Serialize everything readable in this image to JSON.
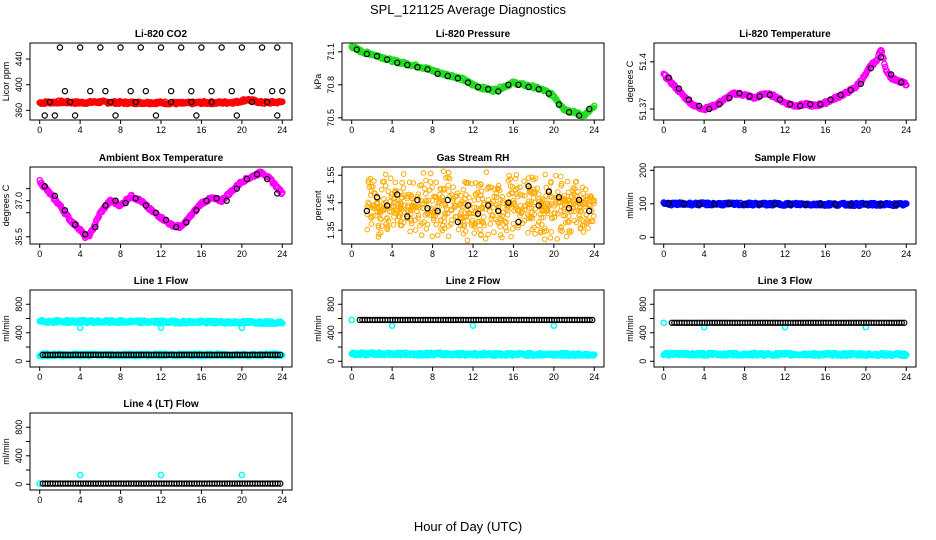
{
  "figure": {
    "title": "SPL_121125  Average Diagnostics",
    "xlabel": "Hour of Day (UTC)"
  },
  "chart_data": [
    {
      "type": "scatter",
      "title": "Li-820 CO2",
      "ylabel": "Licor ppm",
      "xlim": [
        0,
        24
      ],
      "ylim": [
        345,
        465
      ],
      "yticks": [
        360,
        400,
        440
      ],
      "xticks": [
        0,
        4,
        8,
        12,
        16,
        20,
        24
      ],
      "series": [
        {
          "role": "trace",
          "color": "#ff0000",
          "x": [
            0,
            2,
            4,
            6,
            8,
            10,
            12,
            14,
            16,
            18,
            19.5,
            20.5,
            22,
            24
          ],
          "y": [
            372,
            373,
            372,
            373,
            372,
            372,
            372,
            371,
            372,
            372,
            373,
            377,
            372,
            373
          ]
        },
        {
          "role": "points",
          "color": "#000000",
          "x": [
            2,
            2.5,
            4,
            5,
            6,
            6.5,
            8,
            9,
            10,
            10.5,
            12,
            13,
            14,
            15,
            16,
            17,
            18,
            19,
            20,
            21,
            22,
            23,
            23.5,
            24,
            0.5,
            1.5,
            3.5,
            7.5,
            11.5,
            15.5,
            19.5,
            23.5,
            1,
            3,
            7,
            9.5,
            13,
            15,
            17,
            21,
            22.5
          ],
          "y": [
            458,
            390,
            458,
            390,
            458,
            390,
            458,
            390,
            458,
            390,
            458,
            390,
            458,
            390,
            458,
            390,
            458,
            390,
            458,
            390,
            458,
            390,
            458,
            390,
            352,
            352,
            352,
            352,
            352,
            352,
            352,
            352,
            373,
            373,
            373,
            373,
            373,
            373,
            373,
            373,
            373
          ]
        }
      ]
    },
    {
      "type": "scatter",
      "title": "Li-820 Pressure",
      "ylabel": "kPa",
      "xlim": [
        0,
        24
      ],
      "ylim": [
        70.48,
        71.18
      ],
      "yticks": [
        70.5,
        70.8,
        71.1
      ],
      "xticks": [
        0,
        4,
        8,
        12,
        16,
        20,
        24
      ],
      "series": [
        {
          "role": "trace",
          "color": "#22dd22",
          "x": [
            0,
            1,
            2,
            3,
            4,
            5,
            6,
            7,
            8,
            9,
            10,
            11,
            12,
            13,
            14,
            15,
            16,
            17,
            18,
            19,
            20,
            21,
            22,
            23,
            24
          ],
          "y": [
            71.15,
            71.1,
            71.08,
            71.05,
            71.02,
            71.0,
            70.98,
            70.96,
            70.93,
            70.9,
            70.88,
            70.85,
            70.8,
            70.77,
            70.75,
            70.78,
            70.82,
            70.8,
            70.78,
            70.75,
            70.7,
            70.58,
            70.55,
            70.52,
            70.6
          ]
        },
        {
          "role": "points",
          "color": "#000000",
          "x": [
            0.5,
            1.5,
            2.5,
            3.5,
            4.5,
            5.5,
            6.5,
            7.5,
            8.5,
            9.5,
            10.5,
            11.5,
            12.5,
            13.5,
            14.5,
            15.5,
            16.5,
            17.5,
            18.5,
            19.5,
            20.5,
            21.5,
            22.5,
            23.5
          ],
          "y": [
            71.12,
            71.08,
            71.06,
            71.03,
            71.0,
            70.98,
            70.96,
            70.94,
            70.9,
            70.88,
            70.86,
            70.82,
            70.78,
            70.76,
            70.74,
            70.8,
            70.8,
            70.78,
            70.76,
            70.72,
            70.62,
            70.55,
            70.52,
            70.58
          ]
        }
      ]
    },
    {
      "type": "scatter",
      "title": "Li-820 Temperature",
      "ylabel": "degrees C",
      "xlim": [
        0,
        24
      ],
      "ylim": [
        51.363,
        51.412
      ],
      "yticks": [
        51.37,
        51.4
      ],
      "xticks": [
        0,
        4,
        8,
        12,
        16,
        20,
        24
      ],
      "series": [
        {
          "role": "trace",
          "color": "#ff00ff",
          "x": [
            0,
            1,
            2,
            3,
            4,
            5,
            6,
            7,
            8,
            9,
            10,
            11,
            12,
            13,
            14,
            15,
            16,
            17,
            18,
            19,
            20,
            20.5,
            21,
            21.5,
            22,
            22.5,
            23,
            24
          ],
          "y": [
            51.392,
            51.385,
            51.378,
            51.372,
            51.37,
            51.372,
            51.376,
            51.38,
            51.379,
            51.377,
            51.38,
            51.378,
            51.374,
            51.372,
            51.373,
            51.372,
            51.374,
            51.377,
            51.38,
            51.384,
            51.392,
            51.398,
            51.4,
            51.408,
            51.395,
            51.39,
            51.388,
            51.386
          ]
        },
        {
          "role": "points",
          "color": "#000000",
          "x": [
            0.5,
            1.5,
            2.5,
            3.5,
            4.5,
            5.5,
            6.5,
            7.5,
            8.5,
            9.5,
            10.5,
            11.5,
            12.5,
            13.5,
            14.5,
            15.5,
            16.5,
            17.5,
            18.5,
            19.5,
            20.5,
            21.5,
            22.5,
            23.5
          ],
          "y": [
            51.39,
            51.383,
            51.376,
            51.372,
            51.37,
            51.373,
            51.377,
            51.38,
            51.378,
            51.378,
            51.379,
            51.376,
            51.373,
            51.372,
            51.373,
            51.373,
            51.376,
            51.379,
            51.382,
            51.386,
            51.396,
            51.403,
            51.392,
            51.387
          ]
        }
      ]
    },
    {
      "type": "scatter",
      "title": "Ambient Box Temperature",
      "ylabel": "degrees C",
      "xlim": [
        0,
        24
      ],
      "ylim": [
        35.2,
        38.4
      ],
      "yticks": [
        35.5,
        36.5,
        37.0,
        37.5
      ],
      "yticklabels": [
        "35.5",
        "",
        "37.0",
        ""
      ],
      "xticks": [
        0,
        4,
        8,
        12,
        16,
        20,
        24
      ],
      "series": [
        {
          "role": "trace",
          "color": "#ff00ff",
          "x": [
            0,
            1,
            2,
            3,
            4,
            4.5,
            5,
            6,
            7,
            8,
            9,
            10,
            11,
            12,
            13,
            14,
            15,
            16,
            17,
            18,
            19,
            20,
            21,
            22,
            23,
            24
          ],
          "y": [
            37.8,
            37.3,
            36.8,
            36.2,
            35.8,
            35.5,
            35.6,
            36.5,
            37.0,
            36.8,
            37.2,
            37.0,
            36.6,
            36.3,
            36.0,
            35.9,
            36.4,
            36.9,
            37.1,
            37.0,
            37.4,
            37.8,
            38.0,
            38.2,
            37.8,
            37.3
          ]
        },
        {
          "role": "points",
          "color": "#000000",
          "x": [
            0.5,
            1.5,
            2.5,
            3.5,
            4.5,
            5.5,
            6.5,
            7.5,
            8.5,
            9.5,
            10.5,
            11.5,
            12.5,
            13.5,
            14.5,
            15.5,
            16.5,
            17.5,
            18.5,
            19.5,
            20.5,
            21.5,
            22.5,
            23.5
          ],
          "y": [
            37.6,
            37.2,
            36.6,
            36.0,
            35.6,
            35.9,
            36.8,
            37.0,
            36.9,
            37.1,
            36.8,
            36.5,
            36.2,
            35.9,
            36.1,
            36.6,
            37.0,
            37.1,
            37.0,
            37.5,
            37.9,
            38.1,
            37.9,
            37.3
          ]
        }
      ]
    },
    {
      "type": "scatter",
      "title": "Gas Stream RH",
      "ylabel": "percent",
      "xlim": [
        0,
        24
      ],
      "ylim": [
        1.3,
        1.58
      ],
      "yticks": [
        1.35,
        1.45,
        1.55
      ],
      "xticks": [
        0,
        4,
        8,
        12,
        16,
        20,
        24
      ],
      "series": [
        {
          "role": "cloud",
          "color": "#ffaa00",
          "x_range": [
            1.5,
            24
          ],
          "y_range": [
            1.32,
            1.56
          ]
        },
        {
          "role": "points",
          "color": "#000000",
          "x": [
            1.5,
            2.5,
            3.5,
            4.5,
            5.5,
            6.5,
            7.5,
            8.5,
            9.5,
            10.5,
            11.5,
            12.5,
            13.5,
            14.5,
            15.5,
            16.5,
            17.5,
            18.5,
            19.5,
            20.5,
            21.5,
            22.5,
            23.5
          ],
          "y": [
            1.42,
            1.47,
            1.44,
            1.48,
            1.4,
            1.46,
            1.43,
            1.42,
            1.46,
            1.38,
            1.44,
            1.41,
            1.44,
            1.42,
            1.45,
            1.38,
            1.51,
            1.44,
            1.49,
            1.47,
            1.43,
            1.46,
            1.42
          ]
        }
      ]
    },
    {
      "type": "scatter",
      "title": "Sample Flow",
      "ylabel": "ml/min",
      "xlim": [
        0,
        24
      ],
      "ylim": [
        -20,
        210
      ],
      "yticks": [
        0,
        100,
        200
      ],
      "xticks": [
        0,
        4,
        8,
        12,
        16,
        20,
        24
      ],
      "series": [
        {
          "role": "trace",
          "color": "#0000ff",
          "x": [
            0,
            24
          ],
          "y": [
            100,
            98
          ]
        },
        {
          "role": "points",
          "color": "#000000",
          "x": [
            0.5,
            2,
            3.5,
            5,
            6.5,
            8,
            9.5,
            11,
            12.5,
            14,
            15.5,
            17,
            18.5,
            20,
            21.5,
            23
          ],
          "y": [
            100,
            100,
            99,
            99,
            100,
            99,
            99,
            99,
            98,
            98,
            99,
            99,
            98,
            99,
            98,
            98
          ]
        }
      ]
    },
    {
      "type": "scatter",
      "title": "Line 1 Flow",
      "ylabel": "ml/min",
      "xlim": [
        0,
        24
      ],
      "ylim": [
        -80,
        1000
      ],
      "yticks": [
        0,
        200,
        400,
        600,
        800
      ],
      "yticklabels": [
        "0",
        "",
        "400",
        "",
        "800"
      ],
      "xticks": [
        0,
        4,
        8,
        12,
        16,
        20,
        24
      ],
      "series": [
        {
          "role": "trace",
          "color": "#00ffff",
          "x": [
            0,
            24
          ],
          "y": [
            560,
            545
          ]
        },
        {
          "role": "dots",
          "color": "#00ffff",
          "x": [
            4,
            12,
            20
          ],
          "y": [
            470,
            470,
            470
          ]
        },
        {
          "role": "trace",
          "color": "#00ffff",
          "x": [
            0,
            24
          ],
          "y": [
            90,
            90
          ]
        },
        {
          "role": "points",
          "color": "#000000",
          "x_range": [
            0.3,
            24
          ],
          "y": 90
        }
      ]
    },
    {
      "type": "scatter",
      "title": "Line 2 Flow",
      "ylabel": "ml/min",
      "xlim": [
        0,
        24
      ],
      "ylim": [
        -80,
        1000
      ],
      "yticks": [
        0,
        200,
        400,
        600,
        800
      ],
      "yticklabels": [
        "0",
        "",
        "400",
        "",
        "800"
      ],
      "xticks": [
        0,
        4,
        8,
        12,
        16,
        20,
        24
      ],
      "series": [
        {
          "role": "trace",
          "color": "#00ffff",
          "x": [
            0,
            24
          ],
          "y": [
            105,
            95
          ]
        },
        {
          "role": "dots",
          "color": "#00ffff",
          "x": [
            0,
            4,
            12,
            20
          ],
          "y": [
            580,
            500,
            500,
            500
          ]
        },
        {
          "role": "points",
          "color": "#000000",
          "x_range": [
            0.8,
            24
          ],
          "y": 580
        }
      ]
    },
    {
      "type": "scatter",
      "title": "Line 3 Flow",
      "ylabel": "ml/min",
      "xlim": [
        0,
        24
      ],
      "ylim": [
        -80,
        1000
      ],
      "yticks": [
        0,
        200,
        400,
        600,
        800
      ],
      "yticklabels": [
        "0",
        "",
        "400",
        "",
        "800"
      ],
      "xticks": [
        0,
        4,
        8,
        12,
        16,
        20,
        24
      ],
      "series": [
        {
          "role": "trace",
          "color": "#00ffff",
          "x": [
            0,
            24
          ],
          "y": [
            100,
            95
          ]
        },
        {
          "role": "dots",
          "color": "#00ffff",
          "x": [
            0,
            4,
            12,
            20
          ],
          "y": [
            540,
            480,
            480,
            480
          ]
        },
        {
          "role": "points",
          "color": "#000000",
          "x_range": [
            0.8,
            24
          ],
          "y": 540
        }
      ]
    },
    {
      "type": "scatter",
      "title": "Line 4 (LT) Flow",
      "ylabel": "ml/min",
      "xlim": [
        0,
        24
      ],
      "ylim": [
        -80,
        1000
      ],
      "yticks": [
        0,
        200,
        400,
        600,
        800
      ],
      "yticklabels": [
        "0",
        "",
        "400",
        "",
        "800"
      ],
      "xticks": [
        0,
        4,
        8,
        12,
        16,
        20,
        24
      ],
      "series": [
        {
          "role": "dots",
          "color": "#00ffff",
          "x": [
            0,
            4,
            12,
            20
          ],
          "y": [
            10,
            130,
            130,
            130
          ]
        },
        {
          "role": "points",
          "color": "#000000",
          "x_range": [
            0.3,
            24
          ],
          "y": 10
        }
      ]
    }
  ]
}
